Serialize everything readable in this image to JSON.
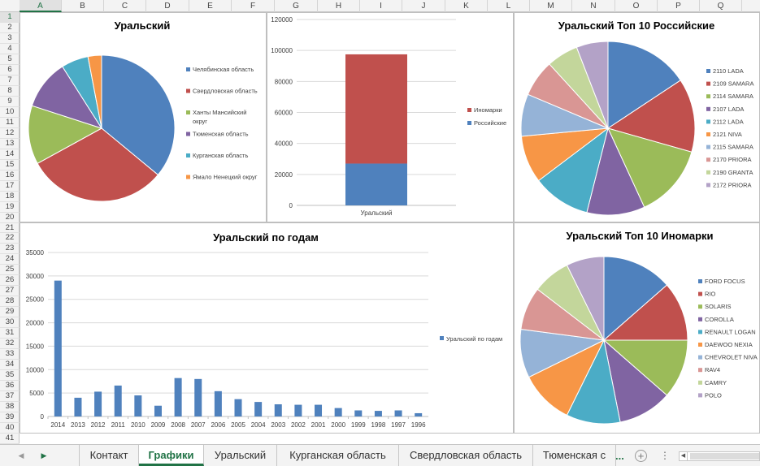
{
  "sheet": {
    "columns": [
      "A",
      "B",
      "C",
      "D",
      "E",
      "F",
      "G",
      "H",
      "I",
      "J",
      "K",
      "L",
      "M",
      "N",
      "O",
      "P",
      "Q",
      "R"
    ],
    "active_column": "A",
    "rows": [
      "1",
      "2",
      "3",
      "4",
      "5",
      "6",
      "7",
      "8",
      "9",
      "10",
      "11",
      "12",
      "13",
      "14",
      "15",
      "16",
      "17",
      "18",
      "19",
      "20",
      "21",
      "22",
      "23",
      "24",
      "25",
      "26",
      "27",
      "28",
      "29",
      "30",
      "31",
      "32",
      "33",
      "34",
      "35",
      "36",
      "37",
      "38",
      "39",
      "40",
      "41"
    ],
    "active_row": "1"
  },
  "tabs": {
    "items": [
      "Контакт",
      "Графики",
      "Уральский",
      "Курганская область",
      "Свердловская область",
      "Тюменская с"
    ],
    "active_index": 1,
    "more": "...",
    "add": "+",
    "menu": "⋮"
  },
  "chart_data": [
    {
      "type": "pie",
      "title": "Уральский",
      "categories": [
        "Челябинская область",
        "Свердловская область",
        "Ханты Мансийский округ",
        "Тюменская область",
        "Курганская область",
        "Ямало Ненецкий округ"
      ],
      "values": [
        36,
        31,
        13,
        11,
        6,
        3
      ],
      "colors": [
        "#4F81BD",
        "#C0504D",
        "#9BBB59",
        "#8064A2",
        "#4BACC6",
        "#F79646"
      ],
      "legend_lines": [
        [
          "Челябинская область"
        ],
        [
          "Свердловская область"
        ],
        [
          "Ханты Мансийский",
          "округ"
        ],
        [
          "Тюменская область"
        ],
        [
          "Курганская область"
        ],
        [
          "Ямало Ненецкий округ"
        ]
      ],
      "legend": "right"
    },
    {
      "type": "bar",
      "stacked": true,
      "categories": [
        "Уральский"
      ],
      "series": [
        {
          "name": "Российские",
          "values": [
            27000
          ],
          "color": "#4F81BD"
        },
        {
          "name": "Иномарки",
          "values": [
            70500
          ],
          "color": "#C0504D"
        }
      ],
      "ylim": [
        0,
        120000
      ],
      "yticks": [
        "0",
        "20000",
        "40000",
        "60000",
        "80000",
        "100000",
        "120000"
      ],
      "grid": true,
      "legend": "right"
    },
    {
      "type": "pie",
      "title": "Уральский Топ 10 Российские",
      "categories": [
        "2110 LADA",
        "2109 SAMARA",
        "2114 SAMARA",
        "2107 LADA",
        "2112 LADA",
        "2121 NIVA",
        "2115 SAMARA",
        "2170 PRIORA",
        "2190 GRANTA",
        "2172 PRIORA"
      ],
      "values": [
        16,
        14,
        14,
        11,
        11,
        9,
        8,
        7,
        6,
        6
      ],
      "colors": [
        "#4F81BD",
        "#C0504D",
        "#9BBB59",
        "#8064A2",
        "#4BACC6",
        "#F79646",
        "#95B3D7",
        "#D99694",
        "#C3D69B",
        "#B3A2C7"
      ],
      "legend": "right"
    },
    {
      "type": "bar",
      "title": "Уральский по годам",
      "categories": [
        "2014",
        "2013",
        "2012",
        "2011",
        "2010",
        "2009",
        "2008",
        "2007",
        "2006",
        "2005",
        "2004",
        "2003",
        "2002",
        "2001",
        "2000",
        "1999",
        "1998",
        "1997",
        "1996"
      ],
      "series": [
        {
          "name": "Уральский по годам",
          "values": [
            29000,
            4000,
            5300,
            6600,
            4500,
            2300,
            8200,
            8000,
            5400,
            3700,
            3100,
            2600,
            2500,
            2500,
            1800,
            1300,
            1200,
            1300,
            700
          ],
          "color": "#4F81BD"
        }
      ],
      "ylim": [
        0,
        35000
      ],
      "yticks": [
        "0",
        "5000",
        "10000",
        "15000",
        "20000",
        "25000",
        "30000",
        "35000"
      ],
      "grid": true,
      "legend": "right"
    },
    {
      "type": "pie",
      "title": "Уральский Топ 10 Иномарки",
      "categories": [
        "FORD FOCUS",
        "RIO",
        "SOLARIS",
        "COROLLA",
        "RENAULT LOGAN",
        "DAEWOO NEXIA",
        "CHEVROLET NIVA",
        "RAV4",
        "CAMRY",
        "POLO"
      ],
      "values": [
        13,
        11,
        11,
        10,
        10,
        10,
        9,
        8,
        7,
        7
      ],
      "colors": [
        "#4F81BD",
        "#C0504D",
        "#9BBB59",
        "#8064A2",
        "#4BACC6",
        "#F79646",
        "#95B3D7",
        "#D99694",
        "#C3D69B",
        "#B3A2C7"
      ],
      "legend": "right"
    }
  ]
}
